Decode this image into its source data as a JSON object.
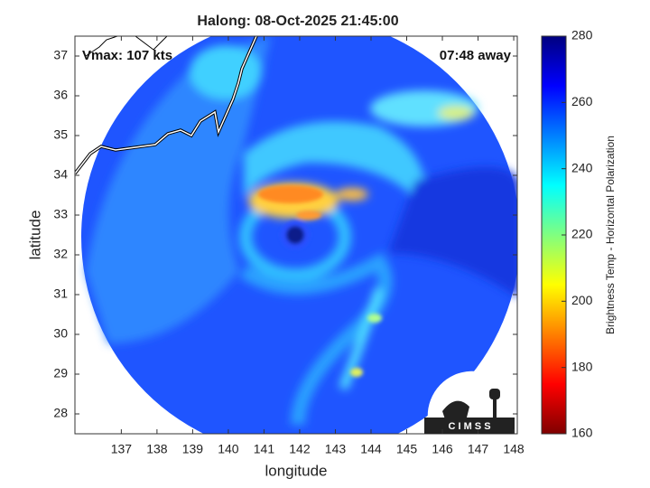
{
  "title": "Halong: 08-Oct-2025 21:45:00",
  "annotations": {
    "vmax": "Vmax: 107 kts",
    "away": "07:48 away"
  },
  "x_axis": {
    "label": "longitude",
    "lim": [
      135.7,
      148.1
    ],
    "ticks": [
      137,
      138,
      139,
      140,
      141,
      142,
      143,
      144,
      145,
      146,
      147,
      148
    ]
  },
  "y_axis": {
    "label": "latitude",
    "lim": [
      27.5,
      37.5
    ],
    "ticks": [
      28,
      29,
      30,
      31,
      32,
      33,
      34,
      35,
      36,
      37
    ]
  },
  "colorbar": {
    "label": "Brightness Temp - Horizontal Polarization",
    "lim": [
      160,
      280
    ],
    "ticks": [
      160,
      180,
      200,
      220,
      240,
      260,
      280
    ]
  },
  "logo": "C I M S S"
}
